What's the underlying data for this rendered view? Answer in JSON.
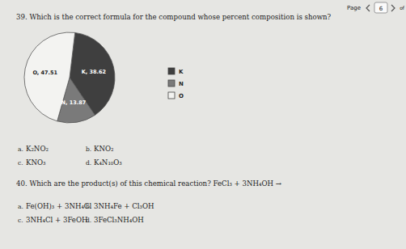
{
  "header": {
    "label": "Page",
    "page": "6",
    "of": "of"
  },
  "chart_data": {
    "type": "pie",
    "categories": [
      "K",
      "N",
      "O"
    ],
    "values": [
      38.62,
      13.87,
      47.51
    ],
    "value_labels": [
      "K, 38.62",
      "N, 13.87",
      "O, 47.51"
    ],
    "colors": [
      "#3f3f3f",
      "#7a7a7a",
      "#f3f3f1"
    ],
    "data_labels": true,
    "legend": "right"
  },
  "questions": [
    {
      "text": "39. Which is the correct formula for the compound whose percent composition is shown?",
      "options": [
        {
          "letter": "a.",
          "text": "K₂NO₂"
        },
        {
          "letter": "b.",
          "text": "KNO₂"
        },
        {
          "letter": "c.",
          "text": "KNO₃"
        },
        {
          "letter": "d.",
          "text": "K₄N₁₀O₃"
        }
      ]
    },
    {
      "text": "40. Which are the product(s) of this chemical reaction? FeCl₃ + 3NH₄OH →",
      "options": [
        {
          "letter": "a.",
          "text": "Fe(OH)₃ + 3NH₄Cl"
        },
        {
          "letter": "b.",
          "text": "3NH₄Fe + Cl₃OH"
        },
        {
          "letter": "c.",
          "text": "3NH₄Cl + 3FeOH"
        },
        {
          "letter": "d.",
          "text": "3FeCl₃NH₄OH"
        }
      ]
    }
  ]
}
